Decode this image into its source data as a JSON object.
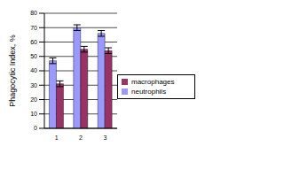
{
  "chart_data": {
    "type": "bar",
    "y_label": "Phagocytic Index, %",
    "categories": [
      "1",
      "2",
      "3"
    ],
    "series": [
      {
        "name": "neutrophils",
        "color": "#9999ff",
        "values": [
          47,
          70,
          66
        ],
        "errors": [
          2,
          2,
          2
        ]
      },
      {
        "name": "macrophages",
        "color": "#993366",
        "values": [
          31,
          55,
          54
        ],
        "errors": [
          2,
          2,
          2
        ]
      }
    ],
    "ylim": [
      0,
      80
    ],
    "yticks": [
      0,
      10,
      20,
      30,
      40,
      50,
      60,
      70,
      80
    ],
    "grid": true,
    "legend": "right"
  }
}
